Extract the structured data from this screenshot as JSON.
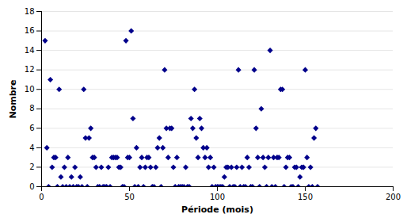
{
  "chart_data": {
    "type": "scatter",
    "xlabel": "Période (mois)",
    "ylabel": "Nombre",
    "xlim": [
      0,
      200
    ],
    "ylim": [
      0,
      18
    ],
    "xticks": [
      0,
      50,
      100,
      150,
      200
    ],
    "yticks": [
      0,
      2,
      4,
      6,
      8,
      10,
      12,
      14,
      16,
      18
    ],
    "color": "#00008B",
    "marker": "diamond",
    "grid": "y",
    "x": [
      2,
      3,
      4,
      5,
      6,
      7,
      8,
      9,
      10,
      11,
      12,
      13,
      14,
      15,
      16,
      17,
      18,
      19,
      20,
      21,
      22,
      23,
      24,
      25,
      26,
      27,
      28,
      29,
      30,
      31,
      32,
      33,
      34,
      35,
      36,
      37,
      38,
      39,
      40,
      41,
      42,
      43,
      44,
      45,
      46,
      47,
      48,
      49,
      50,
      51,
      52,
      53,
      54,
      55,
      56,
      57,
      58,
      59,
      60,
      61,
      62,
      63,
      64,
      65,
      66,
      67,
      68,
      69,
      70,
      71,
      72,
      73,
      74,
      75,
      76,
      77,
      78,
      79,
      80,
      81,
      82,
      83,
      84,
      85,
      86,
      87,
      88,
      89,
      90,
      91,
      92,
      93,
      94,
      95,
      96,
      97,
      98,
      99,
      100,
      101,
      102,
      103,
      104,
      105,
      106,
      107,
      108,
      109,
      110,
      111,
      112,
      113,
      114,
      115,
      116,
      117,
      118,
      119,
      120,
      121,
      122,
      123,
      124,
      125,
      126,
      127,
      128,
      129,
      130,
      131,
      132,
      133,
      134,
      135,
      136,
      137,
      138,
      139,
      140,
      141,
      142,
      143,
      144,
      145,
      146,
      147,
      148,
      149,
      150,
      151,
      152,
      153,
      154,
      155,
      156,
      157
    ],
    "y": [
      15,
      4,
      0,
      11,
      2,
      3,
      3,
      0,
      10,
      1,
      0,
      2,
      0,
      3,
      0,
      1,
      0,
      2,
      0,
      0,
      1,
      0,
      10,
      5,
      0,
      5,
      6,
      3,
      3,
      2,
      0,
      0,
      2,
      0,
      0,
      0,
      2,
      0,
      3,
      3,
      3,
      3,
      2,
      2,
      0,
      0,
      15,
      3,
      3,
      16,
      7,
      0,
      4,
      0,
      2,
      3,
      0,
      2,
      3,
      3,
      2,
      0,
      0,
      2,
      4,
      5,
      0,
      4,
      12,
      6,
      3,
      6,
      6,
      2,
      0,
      3,
      0,
      0,
      0,
      0,
      2,
      0,
      0,
      7,
      6,
      10,
      5,
      3,
      7,
      6,
      4,
      3,
      4,
      2,
      3,
      0,
      2,
      0,
      0,
      0,
      0,
      0,
      1,
      2,
      2,
      0,
      2,
      0,
      0,
      2,
      12,
      0,
      2,
      0,
      0,
      3,
      2,
      0,
      0,
      12,
      6,
      3,
      0,
      8,
      3,
      2,
      0,
      3,
      14,
      0,
      3,
      0,
      3,
      3,
      10,
      10,
      0,
      2,
      3,
      3,
      0,
      0,
      2,
      2,
      0,
      1,
      2,
      2,
      12,
      3,
      0,
      2,
      0,
      5,
      6,
      0
    ]
  }
}
